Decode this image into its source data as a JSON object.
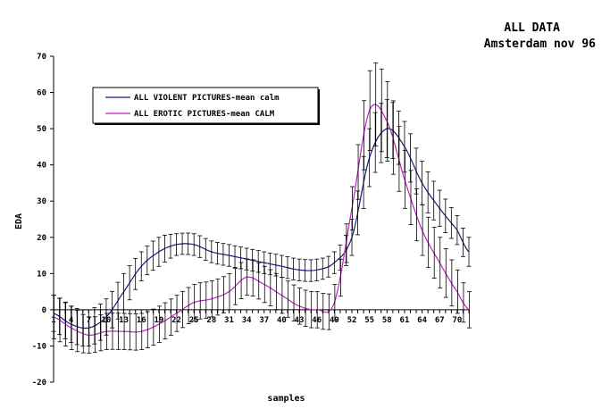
{
  "header": {
    "title_line1": "ALL DATA",
    "title_line2": "Amsterdam nov 96"
  },
  "chart_data": {
    "type": "line",
    "xlabel": "samples",
    "ylabel": "EDA",
    "ylim": [
      -20,
      70
    ],
    "xlim": [
      1,
      72
    ],
    "yticks": [
      -20,
      -10,
      0,
      10,
      20,
      30,
      40,
      50,
      60,
      70
    ],
    "xtick_labels": [
      1,
      4,
      7,
      10,
      13,
      16,
      19,
      22,
      25,
      28,
      31,
      34,
      37,
      40,
      43,
      46,
      49,
      52,
      55,
      58,
      61,
      64,
      67,
      70
    ],
    "legend_position": "top-left",
    "series": [
      {
        "name": "ALL VIOLENT PICTURES-mean calm",
        "color": "#1a1a7a",
        "x": [
          1,
          4,
          7,
          10,
          13,
          16,
          19,
          22,
          25,
          28,
          31,
          34,
          37,
          40,
          43,
          46,
          49,
          52,
          55,
          58,
          61,
          64,
          67,
          70,
          72
        ],
        "values": [
          -1,
          -4,
          -5,
          -2,
          5,
          12,
          16,
          18,
          18,
          16,
          15,
          14,
          13,
          12,
          11,
          11,
          13,
          20,
          42,
          50,
          45,
          35,
          28,
          22,
          16
        ],
        "error": [
          5,
          5,
          5,
          5,
          5,
          4,
          4,
          3,
          3,
          3,
          3,
          3,
          3,
          3,
          3,
          3,
          3,
          5,
          8,
          8,
          7,
          6,
          5,
          4,
          4
        ]
      },
      {
        "name": "ALL EROTIC PICTURES-mean CALM",
        "color": "#c020c0",
        "x": [
          1,
          4,
          7,
          10,
          13,
          16,
          19,
          22,
          25,
          28,
          31,
          34,
          37,
          40,
          43,
          46,
          49,
          52,
          55,
          58,
          61,
          64,
          67,
          70,
          72
        ],
        "values": [
          -2,
          -5,
          -7,
          -6,
          -6,
          -6,
          -4,
          -1,
          2,
          3,
          5,
          9,
          7,
          4,
          1,
          0,
          2,
          28,
          55,
          52,
          36,
          22,
          13,
          5,
          0
        ],
        "error": [
          6,
          6,
          5,
          5,
          5,
          5,
          5,
          5,
          5,
          5,
          5,
          5,
          5,
          5,
          5,
          5,
          5,
          6,
          11,
          11,
          8,
          7,
          7,
          6,
          5
        ]
      }
    ]
  }
}
